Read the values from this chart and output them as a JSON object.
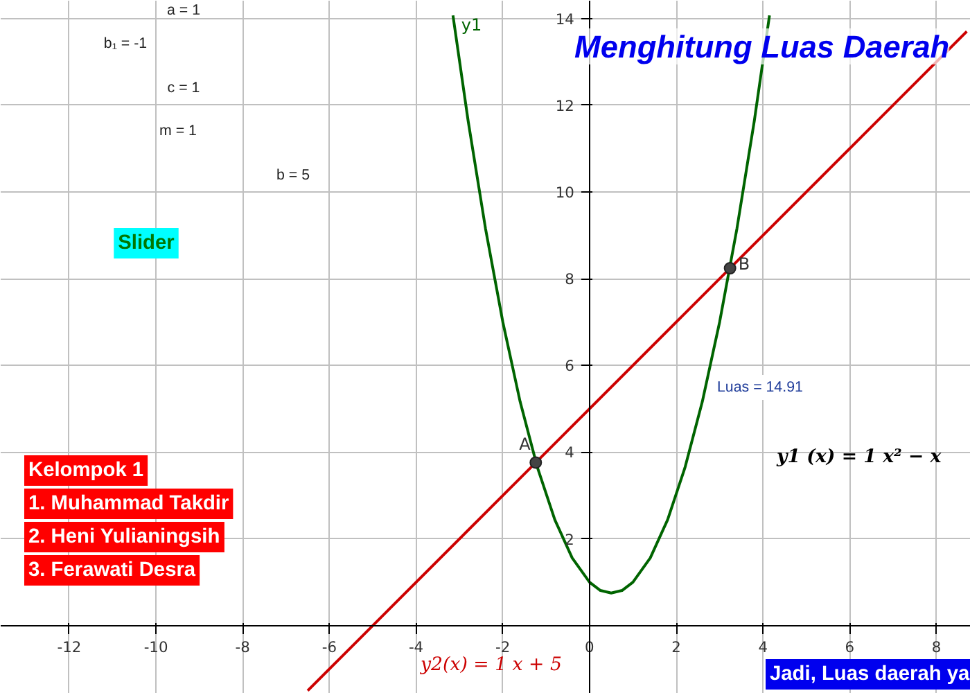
{
  "chart_data": {
    "type": "line",
    "title": "Menghitung Luas Daerah",
    "xlim": [
      -13.58,
      8.79
    ],
    "ylim": [
      -1.57,
      14.41
    ],
    "xticks": [
      -12,
      -10,
      -8,
      -6,
      -4,
      -2,
      0,
      2,
      4,
      6,
      8
    ],
    "yticks": [
      2,
      4,
      6,
      8,
      10,
      12,
      14
    ],
    "grid": true,
    "marker": "none",
    "line_style": "solid",
    "series": [
      {
        "name": "y1",
        "color": "#006400",
        "x": [
          -3.15,
          -2.8,
          -2.4,
          -2.0,
          -1.6,
          -1.2,
          -0.8,
          -0.4,
          0,
          0.25,
          0.5,
          0.75,
          1.0,
          1.4,
          1.8,
          2.2,
          2.6,
          3.0,
          3.4,
          3.8,
          4.15
        ],
        "values": [
          14.07,
          11.64,
          9.16,
          7,
          5.16,
          3.64,
          2.44,
          1.56,
          1,
          0.81,
          0.75,
          0.81,
          1,
          1.56,
          2.44,
          3.64,
          5.16,
          7,
          9.16,
          11.64,
          14.07
        ]
      },
      {
        "color": "#cc0000",
        "x": [
          -6.5,
          8.7
        ],
        "values": [
          -1.5,
          13.7
        ]
      },
      {
        "type": "scatter",
        "marker": "circle",
        "color": "#444444",
        "x": [
          -1.24,
          3.24
        ],
        "values": [
          3.76,
          8.24
        ]
      }
    ],
    "annotations": [
      {
        "text": "A",
        "x": -1.24,
        "y": 3.76
      },
      {
        "text": "B",
        "x": 3.24,
        "y": 8.24
      },
      "Luas = 14.91",
      "y1 (x) = 1 x² − x",
      "y2(x) = 1 x + 5",
      "a = 1",
      "b₁ = -1",
      "c = 1",
      "m = 1",
      "b = 5",
      "Slider",
      "Kelompok 1",
      "1. Muhammad Takdir",
      "2. Heni Yulianingsih",
      "3. Ferawati Desra",
      "Jadi, Luas daerah ya"
    ]
  }
}
